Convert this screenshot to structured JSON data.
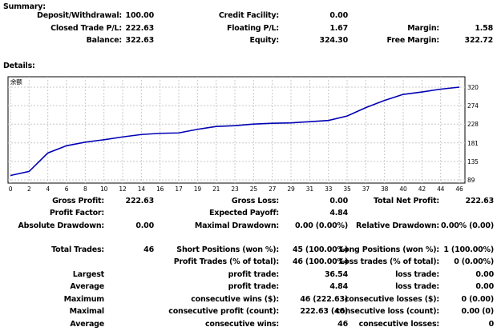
{
  "summary": {
    "title": "Summary:",
    "rows": [
      [
        "Deposit/Withdrawal:",
        "100.00",
        "Credit Facility:",
        "0.00",
        "",
        ""
      ],
      [
        "Closed Trade P/L:",
        "222.63",
        "Floating P/L:",
        "1.67",
        "Margin:",
        "1.58"
      ],
      [
        "Balance:",
        "322.63",
        "Equity:",
        "324.30",
        "Free Margin:",
        "322.72"
      ]
    ]
  },
  "details": {
    "title": "Details:",
    "rows": [
      [
        "Gross Profit:",
        "222.63",
        "Gross Loss:",
        "0.00",
        "Total Net Profit:",
        "222.63"
      ],
      [
        "Profit Factor:",
        "",
        "Expected Payoff:",
        "4.84",
        "",
        ""
      ],
      [
        "Absolute Drawdown:",
        "0.00",
        "Maximal Drawdown:",
        "0.00 (0.00%)",
        "Relative Drawdown:",
        "0.00% (0.00)"
      ],
      [
        "Total Trades:",
        "46",
        "Short Positions (won %):",
        "45 (100.00%)",
        "Long Positions (won %):",
        "1 (100.00%)"
      ],
      [
        "",
        "",
        "Profit Trades (% of total):",
        "46 (100.00%)",
        "Loss trades (% of total):",
        "0 (0.00%)"
      ],
      [
        "Largest",
        "",
        "profit trade:",
        "36.54",
        "loss trade:",
        "0.00"
      ],
      [
        "Average",
        "",
        "profit trade:",
        "4.84",
        "loss trade:",
        "0.00"
      ],
      [
        "Maximum",
        "",
        "consecutive wins ($):",
        "46 (222.63)",
        "consecutive losses ($):",
        "0 (0.00)"
      ],
      [
        "Maximal",
        "",
        "consecutive profit (count):",
        "222.63 (46)",
        "consecutive loss (count):",
        "0.00 (0)"
      ],
      [
        "Average",
        "",
        "consecutive wins:",
        "46",
        "consecutive losses:",
        "0"
      ]
    ]
  },
  "chart_data": {
    "type": "line",
    "title": "余额",
    "grid": true,
    "categories": [
      "0",
      "2",
      "4",
      "6",
      "8",
      "10",
      "12",
      "14",
      "16",
      "17",
      "19",
      "21",
      "23",
      "25",
      "27",
      "29",
      "31",
      "33",
      "35",
      "37",
      "38",
      "40",
      "42",
      "44",
      "46"
    ],
    "yticks": [
      89,
      135,
      181,
      228,
      274,
      320
    ],
    "ylim": [
      89,
      320
    ],
    "series": [
      {
        "values": [
          100,
          110,
          156,
          174,
          183,
          189,
          196,
          202,
          205,
          206,
          215,
          222,
          224,
          228,
          230,
          231,
          234,
          237,
          248,
          269,
          287,
          302,
          308,
          315,
          320
        ]
      }
    ],
    "line_color": "#0000b4"
  }
}
